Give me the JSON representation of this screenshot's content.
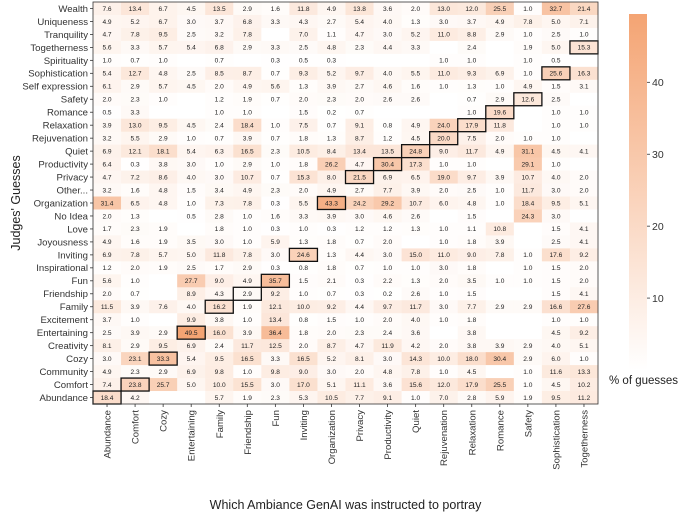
{
  "chart_data": {
    "type": "heatmap",
    "title": "",
    "xlabel": "Which Ambiance GenAI was instructed to portray",
    "ylabel": "Judges' Guesses",
    "colorbar": {
      "label": "% of guesses",
      "ticks": [
        10,
        20,
        30,
        40
      ],
      "range": [
        0,
        49.5
      ],
      "low_color": "#ffffff",
      "high_color": "#f4a473"
    },
    "x_categories": [
      "Abundance",
      "Comfort",
      "Cozy",
      "Entertaining",
      "Family",
      "Friendship",
      "Fun",
      "Inviting",
      "Organization",
      "Privacy",
      "Productivity",
      "Quiet",
      "Rejuvenation",
      "Relaxation",
      "Romance",
      "Safety",
      "Sophistication",
      "Togetherness"
    ],
    "y_categories": [
      "Wealth",
      "Uniqueness",
      "Tranquility",
      "Togetherness",
      "Spirituality",
      "Sophistication",
      "Self expression",
      "Safety",
      "Romance",
      "Relaxation",
      "Rejuvenation",
      "Quiet",
      "Productivity",
      "Privacy",
      "Other...",
      "Organization",
      "No Idea",
      "Love",
      "Joyousness",
      "Inviting",
      "Inspirational",
      "Fun",
      "Friendship",
      "Family",
      "Excitement",
      "Entertaining",
      "Creativity",
      "Cozy",
      "Community",
      "Comfort",
      "Abundance"
    ],
    "values": [
      [
        7.6,
        13.4,
        6.7,
        4.5,
        13.5,
        2.9,
        1.6,
        11.8,
        4.9,
        13.8,
        3.6,
        2.0,
        13.0,
        12.0,
        25.5,
        1.0,
        32.7,
        21.4
      ],
      [
        4.9,
        5.2,
        6.7,
        3.0,
        3.7,
        6.8,
        3.3,
        4.3,
        2.7,
        5.4,
        4.0,
        1.3,
        3.0,
        3.7,
        4.9,
        7.8,
        5.0,
        7.1
      ],
      [
        4.7,
        7.8,
        9.5,
        2.5,
        3.2,
        7.8,
        null,
        7.0,
        1.1,
        4.7,
        3.0,
        5.2,
        11.0,
        8.8,
        2.9,
        1.0,
        2.5,
        1.0
      ],
      [
        5.6,
        3.3,
        5.7,
        5.4,
        6.8,
        2.9,
        3.3,
        2.5,
        4.8,
        2.3,
        4.4,
        3.3,
        null,
        2.4,
        null,
        1.9,
        5.0,
        15.3
      ],
      [
        1.0,
        0.7,
        1.0,
        null,
        0.7,
        null,
        0.3,
        0.5,
        0.3,
        null,
        null,
        null,
        1.0,
        1.0,
        null,
        1.0,
        0.5,
        null
      ],
      [
        5.4,
        12.7,
        4.8,
        2.5,
        8.5,
        8.7,
        0.7,
        9.3,
        5.2,
        9.7,
        4.0,
        5.5,
        11.0,
        9.3,
        6.9,
        1.0,
        25.6,
        16.3
      ],
      [
        6.1,
        2.9,
        5.7,
        4.5,
        2.0,
        4.9,
        5.6,
        1.3,
        3.9,
        2.7,
        4.6,
        1.6,
        1.0,
        1.3,
        1.0,
        4.9,
        1.5,
        3.1
      ],
      [
        2.0,
        2.3,
        1.0,
        null,
        1.2,
        1.9,
        0.7,
        2.0,
        2.3,
        2.0,
        2.6,
        2.6,
        null,
        0.7,
        2.9,
        12.6,
        2.5,
        null
      ],
      [
        0.5,
        3.3,
        null,
        null,
        1.0,
        1.0,
        null,
        1.5,
        0.2,
        0.7,
        null,
        null,
        null,
        1.0,
        19.6,
        null,
        1.0,
        1.0
      ],
      [
        3.9,
        13.0,
        9.5,
        4.5,
        2.4,
        18.4,
        1.0,
        7.5,
        0.7,
        9.1,
        0.8,
        4.9,
        24.0,
        17.9,
        11.8,
        null,
        1.0,
        1.0
      ],
      [
        3.2,
        5.5,
        2.9,
        1.0,
        0.7,
        3.9,
        0.7,
        1.8,
        1.3,
        8.7,
        1.2,
        4.5,
        20.0,
        7.5,
        2.0,
        1.0,
        1.0,
        null
      ],
      [
        6.9,
        12.1,
        18.1,
        5.4,
        6.3,
        16.5,
        2.3,
        10.5,
        8.4,
        13.4,
        13.5,
        24.8,
        9.0,
        11.7,
        4.9,
        31.1,
        4.5,
        4.1
      ],
      [
        6.4,
        0.3,
        3.8,
        3.0,
        1.0,
        2.9,
        1.0,
        1.8,
        26.2,
        4.7,
        30.4,
        17.3,
        1.0,
        1.0,
        null,
        29.1,
        1.0,
        null
      ],
      [
        4.7,
        7.2,
        8.6,
        4.0,
        3.0,
        10.7,
        0.7,
        15.3,
        8.0,
        21.5,
        6.9,
        6.5,
        19.0,
        9.7,
        3.9,
        10.7,
        4.0,
        2.0
      ],
      [
        3.2,
        1.6,
        4.8,
        1.5,
        3.4,
        4.9,
        2.3,
        2.0,
        4.9,
        2.7,
        7.7,
        3.9,
        2.0,
        2.5,
        1.0,
        11.7,
        3.0,
        2.0
      ],
      [
        31.4,
        6.5,
        4.8,
        1.0,
        7.3,
        7.8,
        0.3,
        5.5,
        43.3,
        24.2,
        29.2,
        10.7,
        6.0,
        4.8,
        1.0,
        18.4,
        9.5,
        5.1
      ],
      [
        2.0,
        1.3,
        null,
        0.5,
        2.8,
        1.0,
        1.6,
        3.3,
        3.9,
        3.0,
        4.6,
        2.6,
        null,
        1.5,
        null,
        24.3,
        3.0,
        null
      ],
      [
        1.7,
        2.3,
        1.9,
        null,
        1.8,
        1.0,
        0.3,
        1.0,
        0.3,
        1.2,
        1.2,
        1.3,
        1.0,
        1.1,
        10.8,
        null,
        1.5,
        4.1
      ],
      [
        4.9,
        1.6,
        1.9,
        3.5,
        3.0,
        1.0,
        5.9,
        1.3,
        1.8,
        0.7,
        2.0,
        null,
        1.0,
        1.8,
        3.9,
        null,
        2.5,
        4.1
      ],
      [
        6.9,
        7.8,
        5.7,
        5.0,
        11.8,
        7.8,
        3.0,
        24.6,
        1.3,
        4.4,
        3.0,
        15.0,
        11.0,
        9.0,
        7.8,
        1.0,
        17.6,
        9.2
      ],
      [
        1.2,
        2.0,
        1.9,
        2.5,
        1.7,
        2.9,
        0.3,
        0.8,
        1.8,
        0.7,
        1.0,
        1.0,
        3.0,
        1.8,
        null,
        1.0,
        1.5,
        2.0
      ],
      [
        5.6,
        1.0,
        null,
        27.7,
        9.0,
        4.9,
        35.7,
        1.5,
        2.1,
        0.3,
        2.2,
        1.3,
        2.0,
        3.5,
        1.0,
        1.0,
        1.5,
        2.0
      ],
      [
        2.0,
        0.7,
        null,
        8.9,
        4.3,
        2.9,
        9.2,
        1.0,
        0.7,
        0.3,
        0.2,
        2.6,
        1.0,
        1.5,
        null,
        null,
        1.5,
        4.1
      ],
      [
        11.5,
        3.9,
        7.6,
        4.0,
        16.2,
        1.9,
        12.1,
        10.0,
        9.2,
        4.4,
        9.7,
        11.7,
        3.0,
        7.7,
        2.9,
        2.9,
        16.6,
        27.6
      ],
      [
        3.7,
        1.0,
        null,
        9.9,
        3.8,
        1.0,
        13.4,
        0.8,
        1.5,
        1.0,
        2.0,
        4.0,
        1.0,
        1.8,
        null,
        null,
        1.0,
        1.0
      ],
      [
        2.5,
        3.9,
        2.9,
        49.5,
        16.0,
        3.9,
        36.4,
        1.8,
        2.0,
        2.3,
        2.4,
        3.6,
        null,
        3.8,
        null,
        null,
        4.5,
        9.2
      ],
      [
        8.1,
        2.9,
        9.5,
        6.9,
        2.4,
        11.7,
        12.5,
        2.0,
        8.7,
        4.7,
        11.9,
        4.2,
        2.0,
        3.8,
        3.9,
        2.9,
        4.0,
        5.1
      ],
      [
        3.0,
        23.1,
        33.3,
        5.4,
        9.5,
        16.5,
        3.3,
        16.5,
        5.2,
        8.1,
        3.0,
        14.3,
        10.0,
        18.0,
        30.4,
        2.9,
        6.0,
        1.0
      ],
      [
        4.9,
        2.3,
        2.9,
        6.9,
        9.8,
        1.0,
        9.8,
        9.0,
        3.0,
        2.0,
        4.8,
        7.8,
        1.0,
        4.5,
        null,
        1.0,
        11.6,
        13.3
      ],
      [
        7.4,
        23.8,
        25.7,
        5.0,
        10.0,
        15.5,
        3.0,
        17.0,
        5.1,
        11.1,
        3.6,
        15.6,
        12.0,
        17.9,
        25.5,
        1.0,
        4.5,
        10.2
      ],
      [
        18.4,
        4.2,
        null,
        null,
        5.7,
        1.9,
        2.3,
        5.3,
        10.5,
        7.7,
        9.1,
        1.0,
        7.0,
        2.8,
        5.9,
        1.9,
        9.5,
        11.2
      ]
    ],
    "highlighted_diagonal": [
      [
        "Abundance",
        "Abundance"
      ],
      [
        "Comfort",
        "Comfort"
      ],
      [
        "Cozy",
        "Cozy"
      ],
      [
        "Entertaining",
        "Entertaining"
      ],
      [
        "Family",
        "Family"
      ],
      [
        "Friendship",
        "Friendship"
      ],
      [
        "Fun",
        "Fun"
      ],
      [
        "Inviting",
        "Inviting"
      ],
      [
        "Organization",
        "Organization"
      ],
      [
        "Privacy",
        "Privacy"
      ],
      [
        "Productivity",
        "Productivity"
      ],
      [
        "Quiet",
        "Quiet"
      ],
      [
        "Rejuvenation",
        "Rejuvenation"
      ],
      [
        "Relaxation",
        "Relaxation"
      ],
      [
        "Romance",
        "Romance"
      ],
      [
        "Safety",
        "Safety"
      ],
      [
        "Sophistication",
        "Sophistication"
      ],
      [
        "Togetherness",
        "Togetherness"
      ]
    ]
  }
}
